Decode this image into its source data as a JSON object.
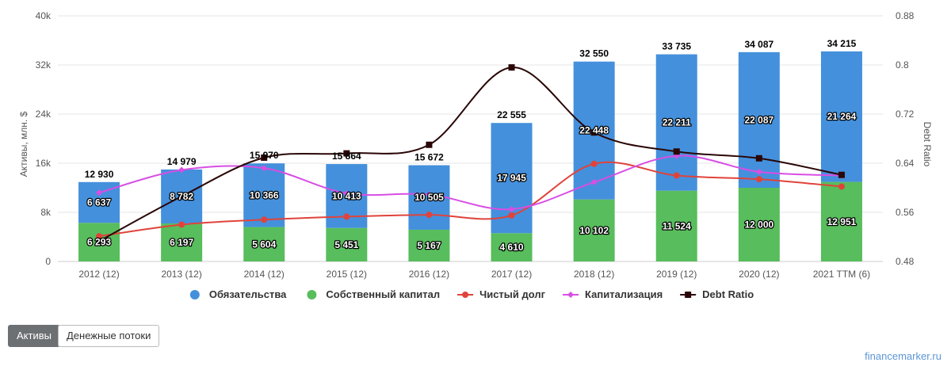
{
  "buttons": {
    "assets_label": "Активы",
    "cash_flows_label": "Денежные потоки"
  },
  "watermark": "financemarker.ru",
  "chart_data": {
    "type": "bar",
    "stacked": true,
    "categories": [
      "2012 (12)",
      "2013 (12)",
      "2014 (12)",
      "2015 (12)",
      "2016 (12)",
      "2017 (12)",
      "2018 (12)",
      "2019 (12)",
      "2020 (12)",
      "2021 TTM (6)"
    ],
    "ylabel": "Активы, млн. $",
    "ylabel_right": "Debt Ratio",
    "ylim": [
      0,
      40000
    ],
    "yticks": [
      "0",
      "8k",
      "16k",
      "24k",
      "32k",
      "40k"
    ],
    "ylim_right": [
      0.48,
      0.88
    ],
    "yticks_right": [
      "0.48",
      "0.56",
      "0.64",
      "0.72",
      "0.8",
      "0.88"
    ],
    "grid": true,
    "legend_position": "bottom",
    "totals": [
      "12 930",
      "14 979",
      "15 970",
      "15 864",
      "15 672",
      "22 555",
      "32 550",
      "33 735",
      "34 087",
      "34 215"
    ],
    "series": [
      {
        "name": "Обязательства",
        "type": "bar",
        "color": "#4490dc",
        "values": [
          6637,
          8782,
          10366,
          10413,
          10505,
          17945,
          22448,
          22211,
          22087,
          21264
        ],
        "labels": [
          "6 637",
          "8 782",
          "10 366",
          "10 413",
          "10 505",
          "17 945",
          "22 448",
          "22 211",
          "22 087",
          "21 264"
        ]
      },
      {
        "name": "Собственный капитал",
        "type": "bar",
        "color": "#58bd5c",
        "values": [
          6293,
          6197,
          5604,
          5451,
          5167,
          4610,
          10102,
          11524,
          12000,
          12951
        ],
        "labels": [
          "6 293",
          "6 197",
          "5 604",
          "5 451",
          "5 167",
          "4 610",
          "10 102",
          "11 524",
          "12 000",
          "12 951"
        ]
      },
      {
        "name": "Чистый долг",
        "type": "line",
        "color": "#e0433b",
        "marker": "circle",
        "values": [
          4100,
          6000,
          6800,
          7300,
          7600,
          7500,
          15900,
          14000,
          13400,
          12200
        ]
      },
      {
        "name": "Капитализация",
        "type": "line",
        "color": "#d84ee4",
        "marker": "diamond",
        "values": [
          11200,
          14900,
          15200,
          11100,
          10900,
          8500,
          12900,
          17200,
          14600,
          14000
        ]
      },
      {
        "name": "Debt Ratio",
        "type": "line",
        "color": "#2a0606",
        "marker": "square",
        "axis": "right",
        "values": [
          0.513,
          0.586,
          0.649,
          0.656,
          0.67,
          0.796,
          0.69,
          0.659,
          0.648,
          0.621
        ]
      }
    ]
  }
}
